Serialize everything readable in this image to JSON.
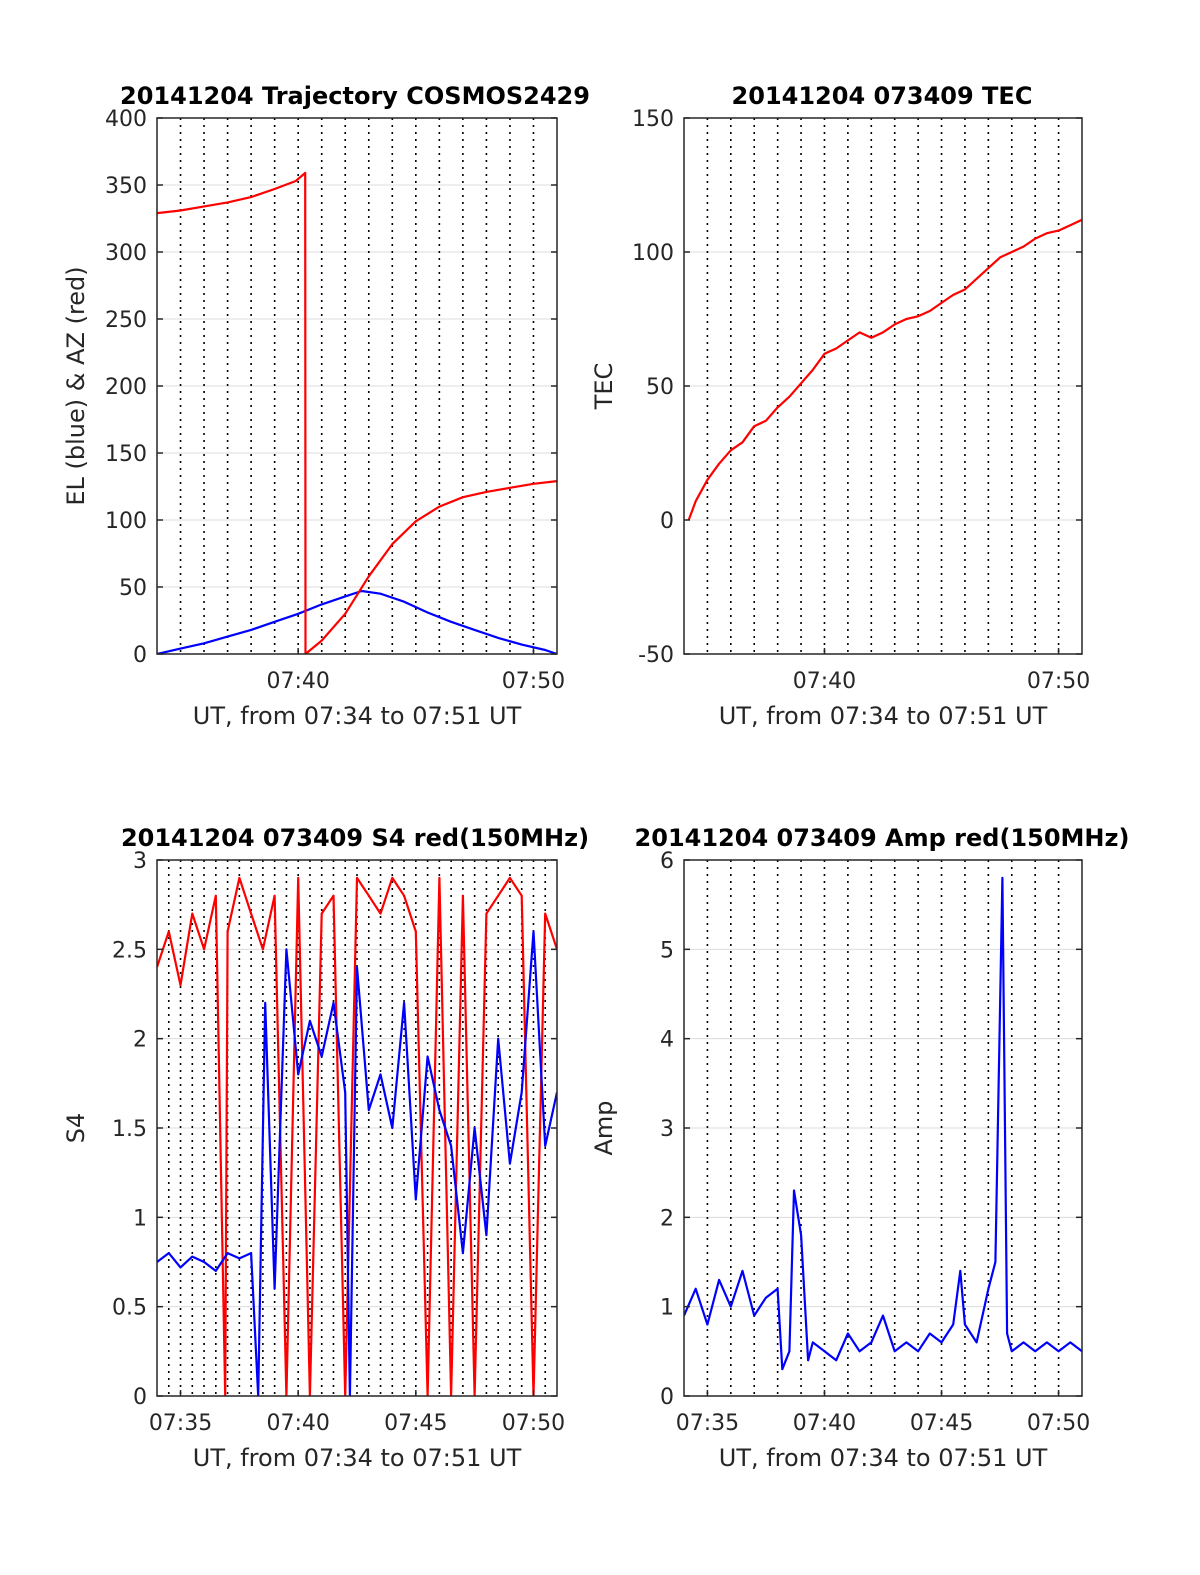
{
  "chart_data": [
    {
      "type": "line",
      "title": "20141204 Trajectory COSMOS2429",
      "xlabel": "UT, from 07:34 to 07:51 UT",
      "ylabel": "EL (blue) & AZ (red)",
      "xlim_minutes": [
        454.0,
        471.0
      ],
      "ylim": [
        0,
        400
      ],
      "x_ticks": [
        {
          "v": 460,
          "label": "07:40"
        },
        {
          "v": 470,
          "label": "07:50"
        }
      ],
      "y_ticks": [
        {
          "v": 0,
          "label": "0"
        },
        {
          "v": 50,
          "label": "50"
        },
        {
          "v": 100,
          "label": "100"
        },
        {
          "v": 150,
          "label": "150"
        },
        {
          "v": 200,
          "label": "200"
        },
        {
          "v": 250,
          "label": "250"
        },
        {
          "v": 300,
          "label": "300"
        },
        {
          "v": 350,
          "label": "350"
        },
        {
          "v": 400,
          "label": "400"
        }
      ],
      "grid": "dotted vertical every minute, horizontal at y ticks",
      "series": [
        {
          "color": "#0000ff",
          "x": [
            454.0,
            455,
            456,
            457,
            458,
            459,
            460,
            461,
            462,
            462.7,
            463.5,
            464.5,
            465.5,
            466.5,
            467.5,
            468.5,
            469.5,
            470.5,
            471.0
          ],
          "values": [
            0,
            4,
            8,
            13,
            18,
            24,
            30,
            37,
            43,
            47,
            45,
            39,
            31,
            24,
            18,
            12,
            7,
            3,
            0
          ]
        },
        {
          "color": "#ff0000",
          "x": [
            454.0,
            455,
            456,
            457,
            458,
            459,
            459.9,
            460.3,
            460.31,
            461,
            462,
            463,
            464,
            465,
            466,
            467,
            468,
            469,
            470,
            471.0
          ],
          "values": [
            329,
            331,
            334,
            337,
            341,
            347,
            353,
            359,
            0,
            10,
            30,
            58,
            82,
            99,
            110,
            117,
            121,
            124,
            127,
            129
          ]
        }
      ]
    },
    {
      "type": "line",
      "title": "20141204 073409 TEC",
      "xlabel": "UT, from 07:34 to 07:51 UT",
      "ylabel": "TEC",
      "xlim_minutes": [
        454.0,
        471.0
      ],
      "ylim": [
        -50,
        150
      ],
      "x_ticks": [
        {
          "v": 460,
          "label": "07:40"
        },
        {
          "v": 470,
          "label": "07:50"
        }
      ],
      "y_ticks": [
        {
          "v": -50,
          "label": "-50"
        },
        {
          "v": 0,
          "label": "0"
        },
        {
          "v": 50,
          "label": "50"
        },
        {
          "v": 100,
          "label": "100"
        },
        {
          "v": 150,
          "label": "150"
        }
      ],
      "grid": "dotted vertical every minute, horizontal at y ticks",
      "series": [
        {
          "color": "#ff0000",
          "x": [
            454.2,
            454.5,
            455,
            455.5,
            456,
            456.5,
            457,
            457.5,
            458,
            458.5,
            459,
            459.5,
            460,
            460.5,
            461,
            461.5,
            462,
            462.5,
            463,
            463.5,
            464,
            464.5,
            465,
            465.5,
            466,
            466.5,
            467,
            467.5,
            468,
            468.5,
            469,
            469.5,
            470,
            470.5,
            471.0
          ],
          "values": [
            0,
            7,
            15,
            21,
            26,
            29,
            35,
            37,
            42,
            46,
            51,
            56,
            62,
            64,
            67,
            70,
            68,
            70,
            73,
            75,
            76,
            78,
            81,
            84,
            86,
            90,
            94,
            98,
            100,
            102,
            105,
            107,
            108,
            110,
            112
          ]
        }
      ]
    },
    {
      "type": "line",
      "title": "20141204 073409 S4 red(150MHz)",
      "xlabel": "UT, from 07:34 to 07:51 UT",
      "ylabel": "S4",
      "xlim_minutes": [
        454.0,
        471.0
      ],
      "ylim": [
        0,
        3
      ],
      "x_ticks": [
        {
          "v": 455,
          "label": "07:35"
        },
        {
          "v": 460,
          "label": "07:40"
        },
        {
          "v": 465,
          "label": "07:45"
        },
        {
          "v": 470,
          "label": "07:50"
        }
      ],
      "y_ticks": [
        {
          "v": 0,
          "label": "0"
        },
        {
          "v": 0.5,
          "label": "0.5"
        },
        {
          "v": 1,
          "label": "1"
        },
        {
          "v": 1.5,
          "label": "1.5"
        },
        {
          "v": 2,
          "label": "2"
        },
        {
          "v": 2.5,
          "label": "2.5"
        },
        {
          "v": 3,
          "label": "3"
        }
      ],
      "grid": "dotted vertical every 30 s, horizontal at y ticks",
      "series": [
        {
          "color": "#ff0000",
          "x": [
            454.0,
            454.5,
            455,
            455.5,
            456,
            456.5,
            456.9,
            457,
            457.5,
            458,
            458.5,
            459,
            459.5,
            460,
            460.5,
            461,
            461.5,
            462,
            462.5,
            463,
            463.5,
            464,
            464.5,
            465,
            465.5,
            466,
            466.5,
            467,
            467.5,
            468,
            468.5,
            469,
            469.5,
            470,
            470.5,
            471.0
          ],
          "values": [
            2.4,
            2.6,
            2.3,
            2.7,
            2.5,
            2.8,
            0.0,
            2.6,
            2.9,
            2.7,
            2.5,
            2.8,
            0.0,
            2.9,
            0.0,
            2.7,
            2.8,
            0.0,
            2.9,
            2.8,
            2.7,
            2.9,
            2.8,
            2.6,
            0.0,
            2.9,
            0.0,
            2.8,
            0.0,
            2.7,
            2.8,
            2.9,
            2.8,
            0.0,
            2.7,
            2.5
          ]
        },
        {
          "color": "#0000ff",
          "x": [
            454.0,
            454.5,
            455,
            455.5,
            456,
            456.5,
            457,
            457.5,
            458,
            458.3,
            458.6,
            459,
            459.5,
            460,
            460.5,
            461,
            461.5,
            462,
            462.2,
            462.5,
            463,
            463.5,
            464,
            464.5,
            465,
            465.5,
            466,
            466.5,
            467,
            467.5,
            468,
            468.5,
            469,
            469.5,
            470,
            470.5,
            471.0
          ],
          "values": [
            0.75,
            0.8,
            0.72,
            0.78,
            0.75,
            0.7,
            0.8,
            0.77,
            0.8,
            0.0,
            2.2,
            0.6,
            2.5,
            1.8,
            2.1,
            1.9,
            2.2,
            1.7,
            0.0,
            2.4,
            1.6,
            1.8,
            1.5,
            2.2,
            1.1,
            1.9,
            1.6,
            1.4,
            0.8,
            1.5,
            0.9,
            2.0,
            1.3,
            1.7,
            2.6,
            1.4,
            1.7
          ]
        }
      ]
    },
    {
      "type": "line",
      "title": "20141204 073409 Amp red(150MHz)",
      "xlabel": "UT, from 07:34 to 07:51 UT",
      "ylabel": "Amp",
      "xlim_minutes": [
        454.0,
        471.0
      ],
      "ylim": [
        0,
        6
      ],
      "x_ticks": [
        {
          "v": 455,
          "label": "07:35"
        },
        {
          "v": 460,
          "label": "07:40"
        },
        {
          "v": 465,
          "label": "07:45"
        },
        {
          "v": 470,
          "label": "07:50"
        }
      ],
      "y_ticks": [
        {
          "v": 0,
          "label": "0"
        },
        {
          "v": 1,
          "label": "1"
        },
        {
          "v": 2,
          "label": "2"
        },
        {
          "v": 3,
          "label": "3"
        },
        {
          "v": 4,
          "label": "4"
        },
        {
          "v": 5,
          "label": "5"
        },
        {
          "v": 6,
          "label": "6"
        }
      ],
      "grid": "dotted vertical every minute, horizontal at y ticks",
      "series": [
        {
          "color": "#0000ff",
          "x": [
            454.0,
            454.5,
            455,
            455.5,
            456,
            456.5,
            457,
            457.5,
            458,
            458.2,
            458.5,
            458.7,
            459,
            459.3,
            459.5,
            460,
            460.5,
            461,
            461.5,
            462,
            462.5,
            463,
            463.5,
            464,
            464.5,
            465,
            465.5,
            465.8,
            466,
            466.5,
            467,
            467.3,
            467.6,
            467.8,
            468,
            468.5,
            469,
            469.5,
            470,
            470.5,
            471.0
          ],
          "values": [
            0.9,
            1.2,
            0.8,
            1.3,
            1.0,
            1.4,
            0.9,
            1.1,
            1.2,
            0.3,
            0.5,
            2.3,
            1.8,
            0.4,
            0.6,
            0.5,
            0.4,
            0.7,
            0.5,
            0.6,
            0.9,
            0.5,
            0.6,
            0.5,
            0.7,
            0.6,
            0.8,
            1.4,
            0.8,
            0.6,
            1.2,
            1.5,
            5.8,
            0.7,
            0.5,
            0.6,
            0.5,
            0.6,
            0.5,
            0.6,
            0.5
          ]
        }
      ]
    }
  ]
}
